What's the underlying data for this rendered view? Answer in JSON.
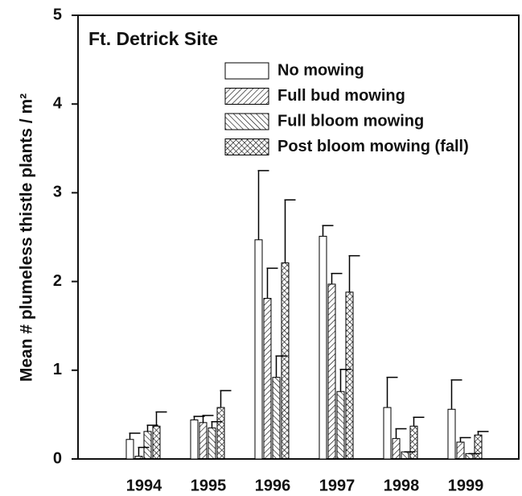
{
  "chart_data": {
    "type": "bar",
    "annotation": "Ft. Detrick Site",
    "ylabel": "Mean # plumeless thistle plants / m²",
    "categories": [
      "1994",
      "1995",
      "1996",
      "1997",
      "1998",
      "1999"
    ],
    "ylim": [
      0,
      5
    ],
    "yticks": [
      0,
      1,
      2,
      3,
      4,
      5
    ],
    "series": [
      {
        "name": "No mowing",
        "color": "#000000",
        "pattern": "none",
        "values": [
          0.22,
          0.44,
          2.47,
          2.51,
          0.58,
          0.56
        ],
        "error": [
          0.07,
          0.04,
          0.78,
          0.12,
          0.34,
          0.33
        ]
      },
      {
        "name": "Full bud mowing",
        "color": "#000000",
        "pattern": "diagonal",
        "values": [
          0.03,
          0.41,
          1.81,
          1.97,
          0.23,
          0.19
        ],
        "error": [
          0.1,
          0.08,
          0.34,
          0.12,
          0.11,
          0.05
        ]
      },
      {
        "name": "Full bloom mowing",
        "color": "#000000",
        "pattern": "backdiagonal",
        "values": [
          0.31,
          0.35,
          0.92,
          0.76,
          0.08,
          0.06
        ],
        "error": [
          0.07,
          0.07,
          0.24,
          0.25,
          0,
          0
        ]
      },
      {
        "name": "Post bloom mowing (fall)",
        "color": "#000000",
        "pattern": "crosshatch",
        "values": [
          0.37,
          0.58,
          2.21,
          1.88,
          0.37,
          0.27
        ],
        "error": [
          0.16,
          0.19,
          0.71,
          0.41,
          0.1,
          0.04
        ]
      }
    ]
  }
}
